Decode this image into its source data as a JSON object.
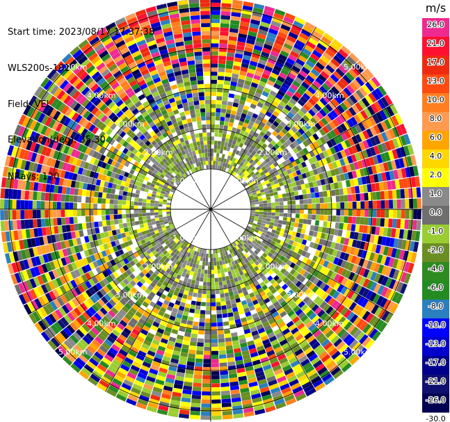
{
  "header": {
    "start_time": "Start time: 2023/08/17 17:37:38",
    "station": "WLS200s-181",
    "field": "Field: VEL",
    "elevation": "Elevation(deg): 35.30",
    "nrays": "NRays: 120"
  },
  "colorbar": {
    "unit": "m/s",
    "ticks": [
      "26.0",
      "21.0",
      "17.0",
      "13.0",
      "10.0",
      "8.0",
      "6.0",
      "4.0",
      "2.0",
      "1.0",
      "0.0",
      "-1.0",
      "-2.0",
      "-4.0",
      "-6.0",
      "-8.0",
      "-10.0",
      "-13.0",
      "-17.0",
      "-21.0",
      "-26.0",
      "-30.0"
    ],
    "colors": [
      "#ee2a90",
      "#ff1030",
      "#ee2a10",
      "#ff4a10",
      "#ff7f20",
      "#ff9a50",
      "#ffa500",
      "#ffd700",
      "#ffff00",
      "#8a8a8a",
      "#6e6e6e",
      "#9acd32",
      "#6b8e23",
      "#2e8b22",
      "#228b22",
      "#2a7fbf",
      "#0000ff",
      "#0000cd",
      "#00008b",
      "#101070",
      "#000050"
    ]
  },
  "chart_data": {
    "type": "polar-ppi",
    "field": "VEL",
    "unit": "m/s",
    "nrays": 120,
    "elevation_deg": 35.3,
    "ring_labels": [
      "1.00km",
      "2.00km",
      "3.00km",
      "4.00km",
      "5.00km"
    ],
    "ring_label_text": [
      "1.00km",
      "2.00km",
      "3.00km",
      "4.00km",
      "5.00km"
    ],
    "vmin": -30.0,
    "vmax": 26.0
  }
}
